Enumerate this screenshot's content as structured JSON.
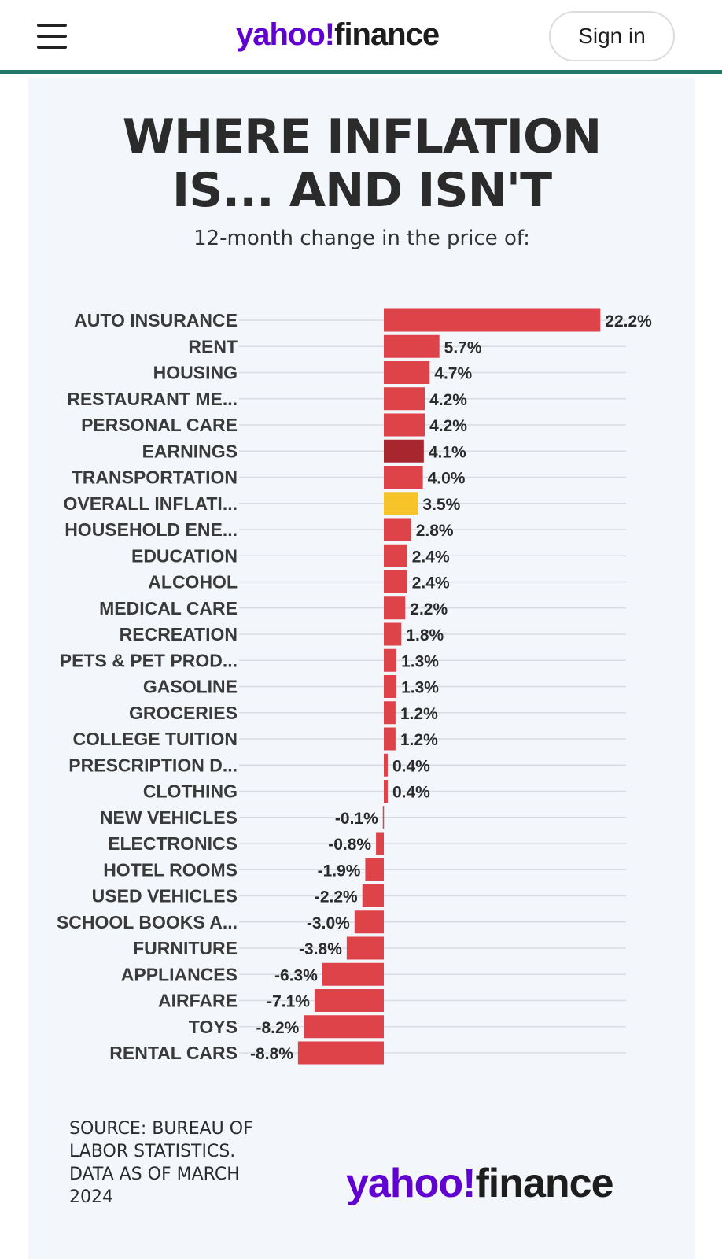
{
  "header": {
    "logo_yahoo": "yahoo!",
    "logo_finance": "finance",
    "signin_label": "Sign in"
  },
  "chart_data": {
    "type": "bar",
    "orientation": "horizontal",
    "title": "WHERE INFLATION\nIS... AND ISN'T",
    "subtitle": "12-month change in the price of:",
    "categories": [
      "AUTO INSURANCE",
      "RENT",
      "HOUSING",
      "RESTAURANT ME...",
      "PERSONAL CARE",
      "EARNINGS",
      "TRANSPORTATION",
      "OVERALL INFLATI...",
      "HOUSEHOLD ENE...",
      "EDUCATION",
      "ALCOHOL",
      "MEDICAL CARE",
      "RECREATION",
      "PETS & PET PROD...",
      "GASOLINE",
      "GROCERIES",
      "COLLEGE TUITION",
      "PRESCRIPTION D...",
      "CLOTHING",
      "NEW VEHICLES",
      "ELECTRONICS",
      "HOTEL ROOMS",
      "USED VEHICLES",
      "SCHOOL BOOKS A...",
      "FURNITURE",
      "APPLIANCES",
      "AIRFARE",
      "TOYS",
      "RENTAL CARS"
    ],
    "values": [
      22.2,
      5.7,
      4.7,
      4.2,
      4.2,
      4.1,
      4.0,
      3.5,
      2.8,
      2.4,
      2.4,
      2.2,
      1.8,
      1.3,
      1.3,
      1.2,
      1.2,
      0.4,
      0.4,
      -0.1,
      -0.8,
      -1.9,
      -2.2,
      -3.0,
      -3.8,
      -6.3,
      -7.1,
      -8.2,
      -8.8
    ],
    "value_labels": [
      "22.2%",
      "5.7%",
      "4.7%",
      "4.2%",
      "4.2%",
      "4.1%",
      "4.0%",
      "3.5%",
      "2.8%",
      "2.4%",
      "2.4%",
      "2.2%",
      "1.8%",
      "1.3%",
      "1.3%",
      "1.2%",
      "1.2%",
      "0.4%",
      "0.4%",
      "-0.1%",
      "-0.8%",
      "-1.9%",
      "-2.2%",
      "-3.0%",
      "-3.8%",
      "-6.3%",
      "-7.1%",
      "-8.2%",
      "-8.8%"
    ],
    "colors": {
      "default": "#dd4349",
      "EARNINGS": "#a8262d",
      "OVERALL INFLATI...": "#f6c428"
    },
    "grid": "horizontal-row-lines"
  },
  "footer": {
    "source": "SOURCE: BUREAU OF LABOR STATISTICS. DATA AS OF MARCH 2024",
    "logo_yahoo": "yahoo!",
    "logo_finance": "finance"
  }
}
